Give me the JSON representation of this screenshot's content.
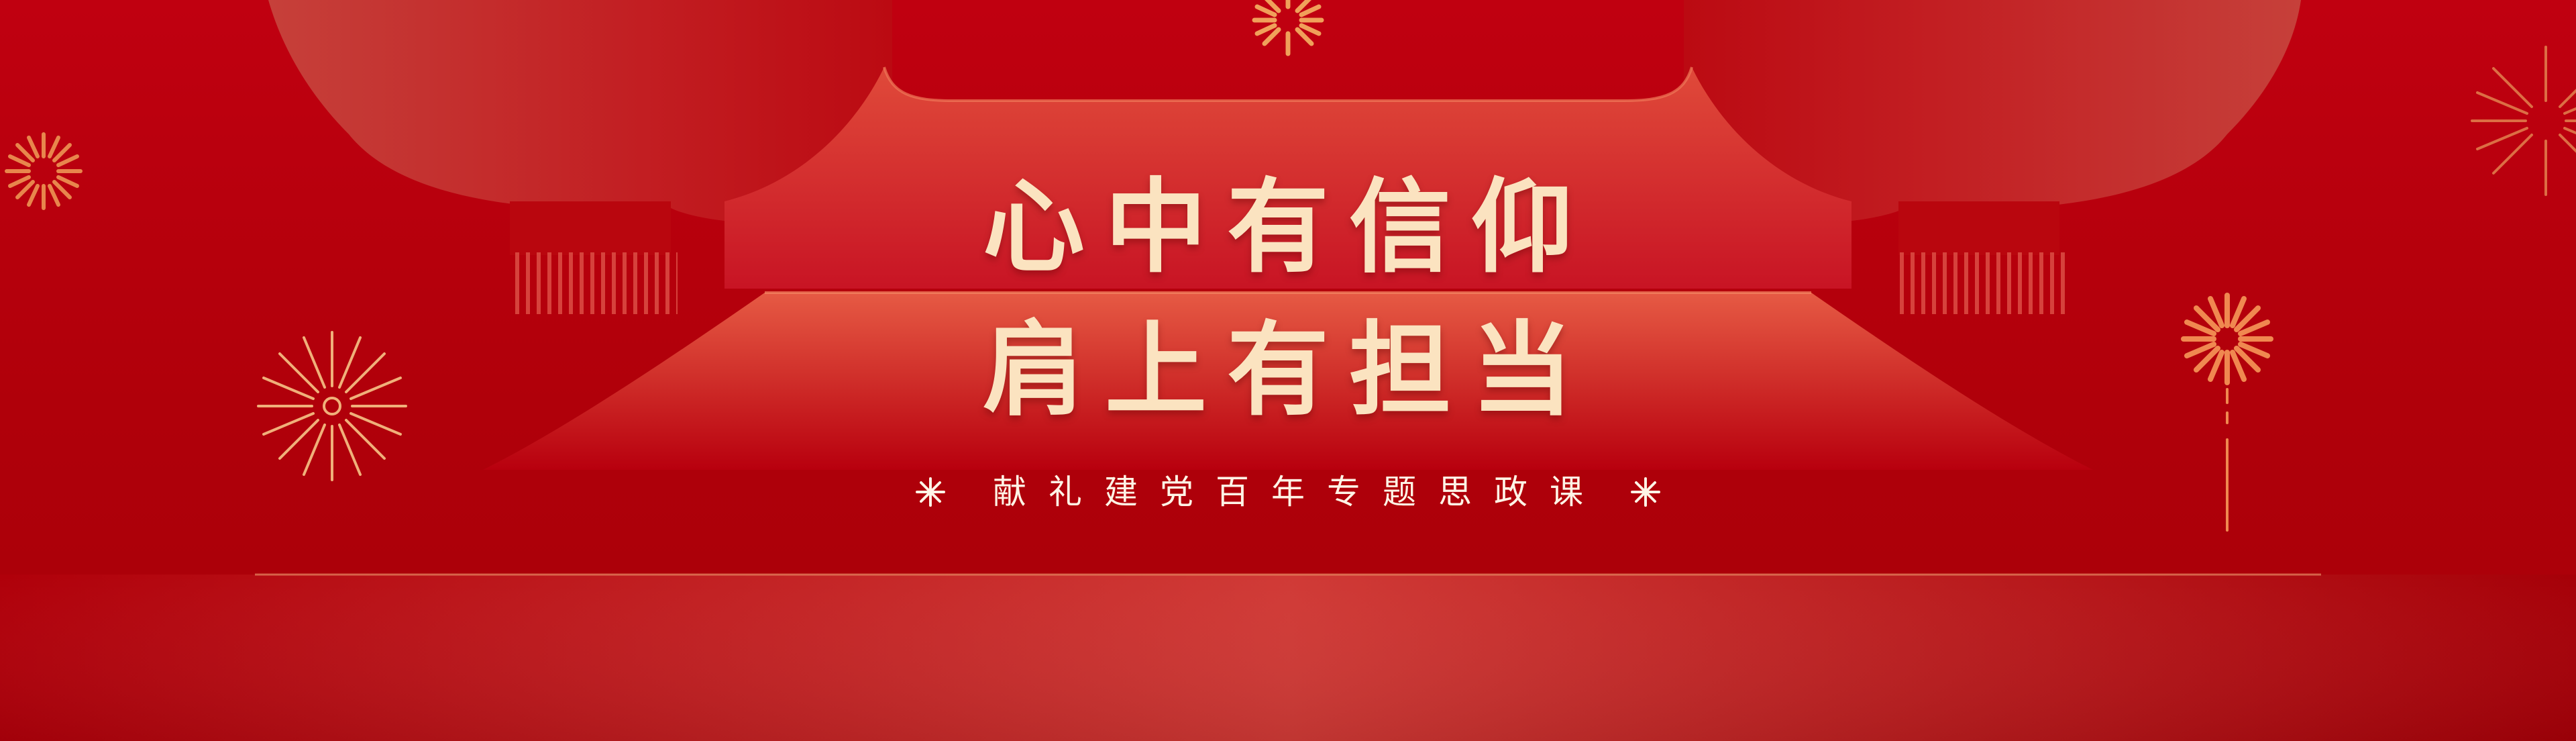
{
  "banner": {
    "title_line_1": "心中有信仰",
    "title_line_2": "肩上有担当",
    "subtitle": "献礼建党百年专题思政课"
  },
  "colors": {
    "background": "#b3000a",
    "title_text": "#fbe3c0",
    "subtitle_text": "#fff4e6",
    "firework": "#f0a05a"
  },
  "icons": {
    "subtitle_ornament": "asterisk-sparkle-icon",
    "decorations": [
      "firework-icon",
      "firework-icon",
      "firework-icon",
      "firework-icon",
      "firework-icon"
    ]
  }
}
